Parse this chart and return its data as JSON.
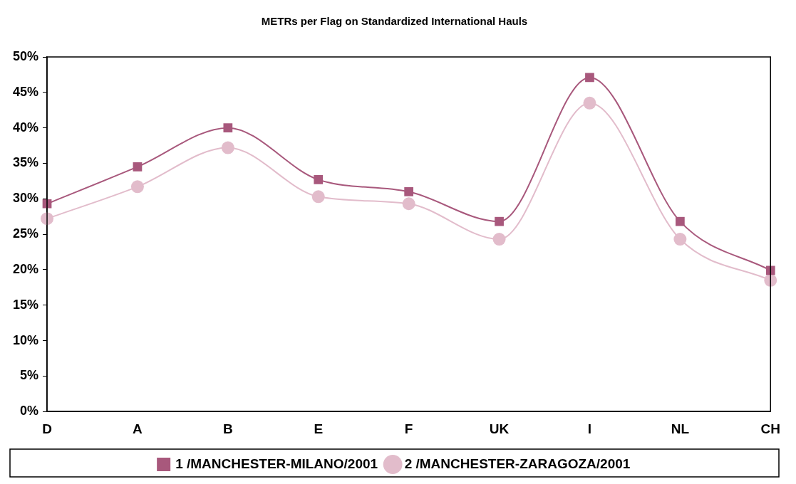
{
  "chart_data": {
    "type": "line",
    "title": "METRs per Flag on Standardized International Hauls",
    "categories": [
      "D",
      "A",
      "B",
      "E",
      "F",
      "UK",
      "I",
      "NL",
      "CH"
    ],
    "series": [
      {
        "name": "1 /MANCHESTER-MILANO/2001",
        "color": "#a8587c",
        "marker": "square",
        "values": [
          29.3,
          34.5,
          40.0,
          32.7,
          31.0,
          26.8,
          47.1,
          26.8,
          19.9
        ]
      },
      {
        "name": "2 /MANCHESTER-ZARAGOZA/2001",
        "color": "#e2bccb",
        "marker": "circle",
        "values": [
          27.2,
          31.7,
          37.2,
          30.3,
          29.3,
          24.3,
          43.5,
          24.3,
          18.5
        ]
      }
    ],
    "ylim": [
      0,
      50
    ],
    "yticks": [
      {
        "value": 0,
        "label": "0%"
      },
      {
        "value": 5,
        "label": "5%"
      },
      {
        "value": 10,
        "label": "10%"
      },
      {
        "value": 15,
        "label": "15%"
      },
      {
        "value": 20,
        "label": "20%"
      },
      {
        "value": 25,
        "label": "25%"
      },
      {
        "value": 30,
        "label": "30%"
      },
      {
        "value": 35,
        "label": "35%"
      },
      {
        "value": 40,
        "label": "40%"
      },
      {
        "value": 45,
        "label": "45%"
      },
      {
        "value": 50,
        "label": "50%"
      }
    ],
    "grid": false,
    "legend": "bottom",
    "line_style": "solid"
  }
}
